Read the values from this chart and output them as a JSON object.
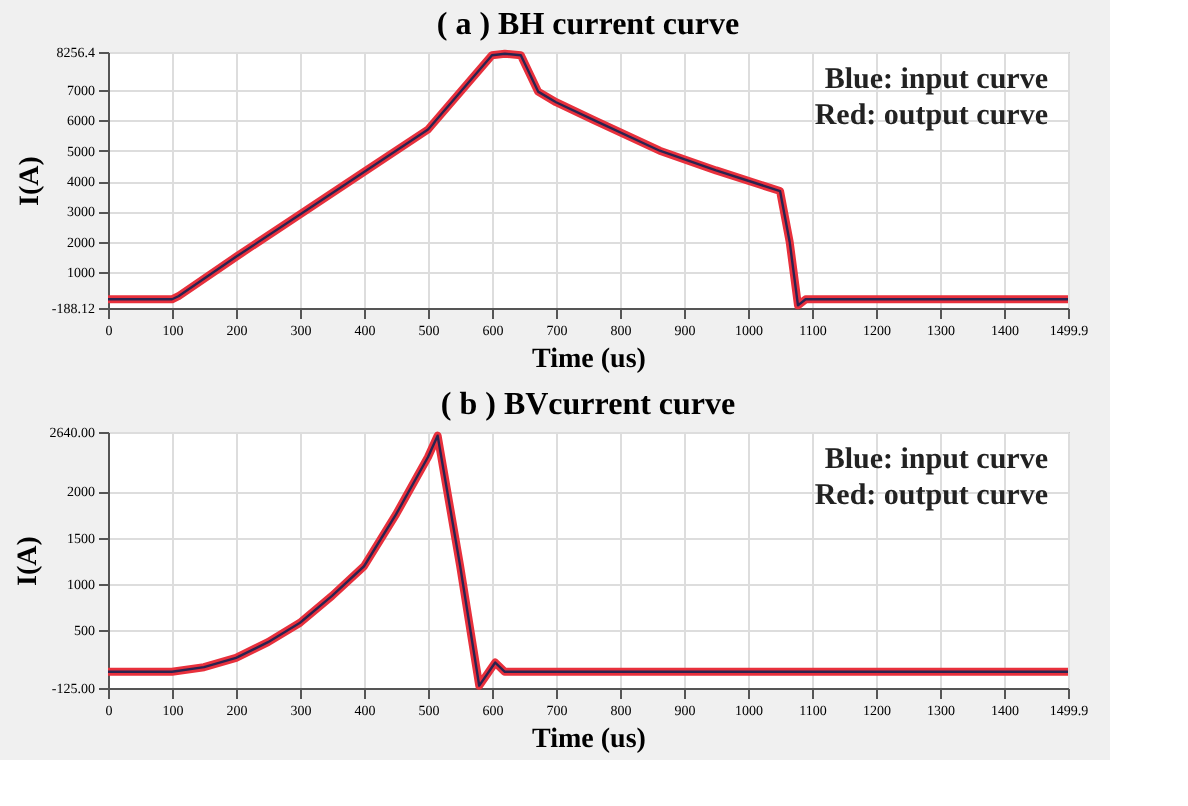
{
  "chart_data": [
    {
      "type": "line",
      "title": "( a )  BH current curve",
      "xlabel": "Time (us)",
      "ylabel": "I(A)",
      "xlim": [
        0,
        1499.9
      ],
      "xticks": [
        0,
        100,
        200,
        300,
        400,
        500,
        600,
        700,
        800,
        900,
        1000,
        1100,
        1200,
        1300,
        1400,
        1499.9
      ],
      "ylim": [
        -188.12,
        8256.4
      ],
      "yticks": [
        -188.12,
        1000,
        2000,
        3000,
        4000,
        5000,
        6000,
        7000,
        8256.4
      ],
      "grid": true,
      "annotations": [
        "Blue: input curve",
        "Red: output curve"
      ],
      "series": [
        {
          "color": "#e8303c",
          "x": [
            0,
            100,
            110,
            200,
            300,
            400,
            500,
            600,
            620,
            645,
            672,
            700,
            760,
            862,
            950,
            1050,
            1065,
            1078,
            1090,
            1200,
            1300,
            1400,
            1499.9
          ],
          "values": [
            100,
            100,
            200,
            1500,
            2900,
            4300,
            5700,
            8150,
            8200,
            8150,
            6950,
            6600,
            6000,
            5000,
            4350,
            3670,
            2000,
            -100,
            100,
            100,
            100,
            100,
            100
          ]
        },
        {
          "color": "#2a2350",
          "x": [
            0,
            100,
            110,
            200,
            300,
            400,
            500,
            600,
            620,
            645,
            672,
            700,
            760,
            862,
            950,
            1050,
            1065,
            1078,
            1090,
            1200,
            1300,
            1400,
            1499.9
          ],
          "values": [
            100,
            100,
            200,
            1500,
            2900,
            4300,
            5700,
            8150,
            8200,
            8150,
            6950,
            6600,
            6000,
            5000,
            4350,
            3670,
            2000,
            -100,
            100,
            100,
            100,
            100,
            100
          ]
        }
      ]
    },
    {
      "type": "line",
      "title": "( b )  BVcurrent curve",
      "xlabel": "Time (us)",
      "ylabel": "I(A)",
      "xlim": [
        0,
        1499.9
      ],
      "xticks": [
        0,
        100,
        200,
        300,
        400,
        500,
        600,
        700,
        800,
        900,
        1000,
        1100,
        1200,
        1300,
        1400,
        1499.9
      ],
      "ylim": [
        -125,
        2640
      ],
      "yticks": [
        {
          "value": -125,
          "label": "-125.00"
        },
        500,
        1000,
        1500,
        2000,
        {
          "value": 2640,
          "label": "2640.00"
        }
      ],
      "grid": true,
      "annotations": [
        "Blue: input curve",
        "Red: output curve"
      ],
      "series": [
        {
          "color": "#e8303c",
          "x": [
            0,
            100,
            150,
            200,
            250,
            300,
            350,
            400,
            450,
            500,
            515,
            550,
            580,
            605,
            620,
            700,
            800,
            1000,
            1200,
            1400,
            1499.9
          ],
          "values": [
            50,
            50,
            100,
            200,
            370,
            580,
            870,
            1190,
            1750,
            2370,
            2600,
            1200,
            -100,
            150,
            50,
            50,
            50,
            50,
            50,
            50,
            50
          ]
        },
        {
          "color": "#2a2350",
          "x": [
            0,
            100,
            150,
            200,
            250,
            300,
            350,
            400,
            450,
            500,
            515,
            550,
            580,
            605,
            620,
            700,
            800,
            1000,
            1200,
            1400,
            1499.9
          ],
          "values": [
            50,
            50,
            100,
            200,
            370,
            580,
            870,
            1190,
            1750,
            2370,
            2600,
            1200,
            -100,
            150,
            50,
            50,
            50,
            50,
            50,
            50,
            50
          ]
        }
      ]
    }
  ]
}
